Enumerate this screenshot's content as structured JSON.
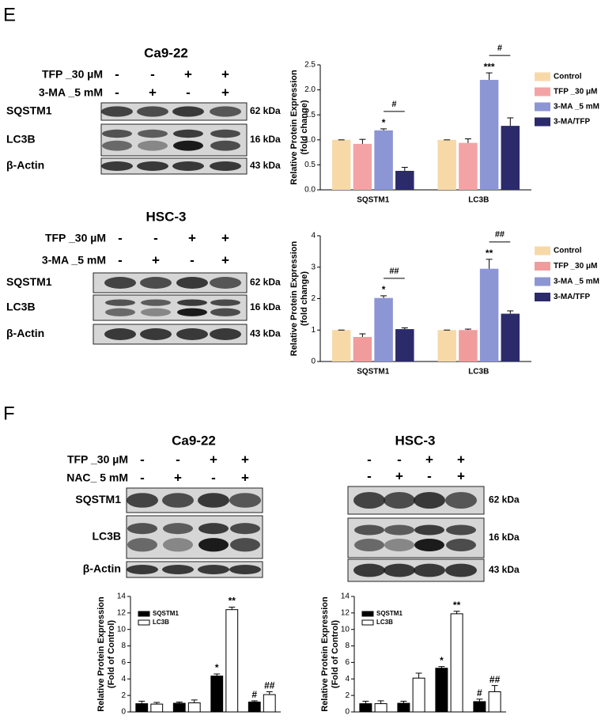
{
  "panel_labels": [
    "E",
    "F"
  ],
  "blots": [
    {
      "title": "Ca9-22",
      "rows": [
        {
          "label": "TFP _30 µM",
          "signs": [
            "-",
            "-",
            "+",
            "+"
          ]
        },
        {
          "label": "3-MA _5 mM",
          "signs": [
            "-",
            "+",
            "-",
            "+"
          ]
        }
      ],
      "bands": [
        {
          "name": "SQSTM1",
          "kda": "62 kDa"
        },
        {
          "name": "LC3B",
          "kda": "16 kDa"
        },
        {
          "name": "β-Actin",
          "kda": "43 kDa"
        }
      ]
    },
    {
      "title": "HSC-3",
      "rows": [
        {
          "label": "TFP _30 µM",
          "signs": [
            "-",
            "-",
            "+",
            "+"
          ]
        },
        {
          "label": "3-MA _5 mM",
          "signs": [
            "-",
            "+",
            "-",
            "+"
          ]
        }
      ],
      "bands": [
        {
          "name": "SQSTM1",
          "kda": "62 kDa"
        },
        {
          "name": "LC3B",
          "kda": "16 kDa"
        },
        {
          "name": "β-Actin",
          "kda": "43 kDa"
        }
      ]
    },
    {
      "title": "Ca9-22",
      "rows": [
        {
          "label": "TFP _30 µM",
          "signs": [
            "-",
            "-",
            "+",
            "+"
          ]
        },
        {
          "label": "NAC_ 5 mM",
          "signs": [
            "-",
            "+",
            "-",
            "+"
          ]
        }
      ],
      "bands": [
        {
          "name": "SQSTM1"
        },
        {
          "name": "LC3B"
        },
        {
          "name": "β-Actin"
        }
      ]
    },
    {
      "title": "HSC-3",
      "rows": [
        {
          "signs": [
            "-",
            "-",
            "+",
            "+"
          ]
        },
        {
          "signs": [
            "-",
            "+",
            "-",
            "+"
          ]
        }
      ],
      "bands": [
        {
          "kda": "62 kDa"
        },
        {
          "kda": "16 kDa"
        },
        {
          "kda": "43 kDa"
        }
      ]
    }
  ],
  "chart_data": [
    {
      "type": "bar",
      "y_label": [
        "Relative Protein Expression",
        "(fold change)"
      ],
      "categories": [
        "SQSTM1",
        "LC3B"
      ],
      "legend": "right",
      "ylim": [
        0,
        2.5
      ],
      "yticks": [
        {
          "value": 0,
          "label": "0.0"
        },
        0.5,
        {
          "value": 1,
          "label": "1.0"
        },
        1.5,
        {
          "value": 2,
          "label": "2.0"
        },
        2.5
      ],
      "brackets": [
        "#",
        "#"
      ],
      "series": [
        {
          "name": "Control",
          "color": "#f7d9a8",
          "values": [
            1,
            1
          ],
          "errors": [
            0,
            0
          ]
        },
        {
          "name": "TFP _30 μM",
          "color": "#f4a3a5",
          "values": [
            0.92,
            0.94
          ],
          "errors": [
            0.09,
            0.08
          ]
        },
        {
          "name": "3-MA _5 mM",
          "color": "#8c96d4",
          "values": [
            1.19,
            2.2
          ],
          "errors": [
            0.03,
            0.14
          ],
          "sig": [
            "*",
            "***"
          ]
        },
        {
          "name": "3-MA/TFP",
          "color": "#2b2a6b",
          "values": [
            0.38,
            1.28
          ],
          "errors": [
            0.07,
            0.16
          ]
        }
      ]
    },
    {
      "type": "bar",
      "y_label": [
        "Relative Protein Expression",
        "(fold change)"
      ],
      "categories": [
        "SQSTM1",
        "LC3B"
      ],
      "legend": "right",
      "ylim": [
        0,
        4
      ],
      "yticks": [
        0,
        1,
        2,
        3,
        4
      ],
      "brackets": [
        "##",
        "##"
      ],
      "series": [
        {
          "name": "Control",
          "color": "#f7d9a8",
          "values": [
            1,
            1
          ],
          "errors": [
            0,
            0
          ]
        },
        {
          "name": "TFP _30 μM",
          "color": "#f19c9c",
          "values": [
            0.78,
            1.0
          ],
          "errors": [
            0.1,
            0.03
          ]
        },
        {
          "name": "3-MA _5 mM",
          "color": "#8c96d4",
          "values": [
            2.02,
            2.95
          ],
          "errors": [
            0.07,
            0.3
          ],
          "sig": [
            "*",
            "**"
          ]
        },
        {
          "name": "3-MA/TFP",
          "color": "#2b2a6b",
          "values": [
            1.03,
            1.52
          ],
          "errors": [
            0.04,
            0.09
          ]
        }
      ]
    },
    {
      "type": "bar",
      "y_label": [
        "Relative Protein Expression",
        "(Fold of Control)"
      ],
      "categories": [
        null,
        null,
        null,
        null
      ],
      "legend": "upper left",
      "bar_edge": "#000000",
      "ylim": [
        0,
        14
      ],
      "yticks": [
        0,
        2,
        4,
        6,
        8,
        10,
        12,
        14
      ],
      "series": [
        {
          "name": "SQSTM1",
          "color": "#000000",
          "values": [
            1.0,
            1.05,
            4.35,
            1.2
          ],
          "errors": [
            0.3,
            0.15,
            0.25,
            0.15
          ],
          "sig": [
            null,
            null,
            "*",
            "#"
          ]
        },
        {
          "name": "LC3B",
          "color": "#ffffff",
          "values": [
            0.95,
            1.1,
            12.4,
            2.1
          ],
          "errors": [
            0.2,
            0.35,
            0.3,
            0.35
          ],
          "sig": [
            null,
            null,
            "**",
            "##"
          ]
        }
      ]
    },
    {
      "type": "bar",
      "y_label": [
        "Relative Protein Expression",
        "(Fold of Control)"
      ],
      "categories": [
        null,
        null,
        null,
        null
      ],
      "legend": "upper left",
      "bar_edge": "#000000",
      "ylim": [
        0,
        14
      ],
      "yticks": [
        0,
        2,
        4,
        6,
        8,
        10,
        12,
        14
      ],
      "series": [
        {
          "name": "SQSTM1",
          "color": "#000000",
          "values": [
            1.0,
            1.05,
            5.3,
            1.25
          ],
          "errors": [
            0.3,
            0.25,
            0.2,
            0.3
          ],
          "sig": [
            null,
            null,
            "*",
            "#"
          ]
        },
        {
          "name": "LC3B",
          "color": "#ffffff",
          "values": [
            1.0,
            4.1,
            11.9,
            2.45
          ],
          "errors": [
            0.35,
            0.6,
            0.3,
            0.75
          ],
          "sig": [
            null,
            null,
            "**",
            "##"
          ]
        }
      ]
    }
  ]
}
